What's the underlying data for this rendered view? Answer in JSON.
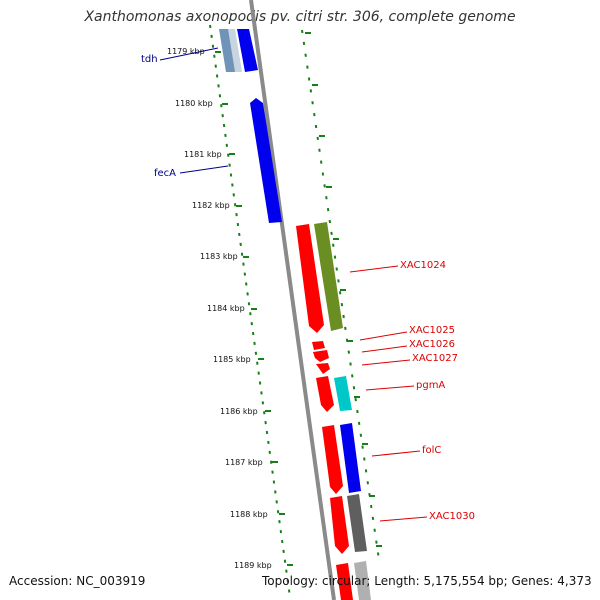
{
  "title": "Xanthomonas axonopodis pv. citri str. 306, complete genome",
  "accession": "Accession: NC_003919",
  "topology": "Topology: circular; Length: 5,175,554 bp; Genes: 4,373",
  "ticks": [
    "1179 kbp",
    "1180 kbp",
    "1181 kbp",
    "1182 kbp",
    "1183 kbp",
    "1184 kbp",
    "1185 kbp",
    "1186 kbp",
    "1187 kbp",
    "1188 kbp",
    "1189 kbp"
  ],
  "colors": {
    "forward_strand": "#0000ee",
    "reverse_strand": "#ee0000",
    "dotted_ruler": "#1a7f1a",
    "backbone": "#888888"
  },
  "left_genes": [
    {
      "label": "tdh",
      "color": "#00008b"
    },
    {
      "label": "fecA",
      "color": "#00008b"
    }
  ],
  "right_genes": [
    {
      "label": "XAC1024",
      "color": "#dd0000"
    },
    {
      "label": "XAC1025",
      "color": "#dd0000"
    },
    {
      "label": "XAC1026",
      "color": "#dd0000"
    },
    {
      "label": "XAC1027",
      "color": "#dd0000"
    },
    {
      "label": "pgmA",
      "color": "#dd0000"
    },
    {
      "label": "folC",
      "color": "#dd0000"
    },
    {
      "label": "XAC1030",
      "color": "#dd0000"
    }
  ]
}
